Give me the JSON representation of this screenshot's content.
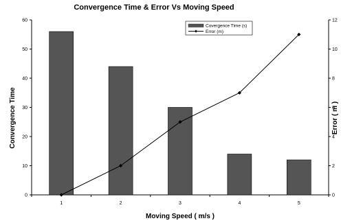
{
  "chart_data": {
    "type": "bar",
    "title": "Convergence Time & Error Vs Moving Speed",
    "xlabel": "Moving Speed ( m/s )",
    "ylabel": "Convergence Time",
    "y2label": "Error ( m )",
    "categories": [
      "1",
      "2",
      "3",
      "4",
      "5"
    ],
    "ylim": [
      0,
      60
    ],
    "yticks": [
      "0",
      "10",
      "20",
      "30",
      "40",
      "50",
      "60"
    ],
    "y2lim": [
      0,
      12
    ],
    "y2ticks": [
      "0",
      "2",
      "4",
      "6",
      "8",
      "10",
      "12"
    ],
    "legend_position": "top-center",
    "grid": false,
    "series": [
      {
        "name": "Covergence Time (s)",
        "type": "bar",
        "axis": "left",
        "color": "#555555",
        "values": [
          56,
          44,
          30,
          14,
          12
        ]
      },
      {
        "name": "Error (m)",
        "type": "line",
        "axis": "right",
        "color": "#000000",
        "marker": "diamond",
        "values": [
          0,
          2,
          5,
          7,
          11
        ]
      }
    ]
  }
}
